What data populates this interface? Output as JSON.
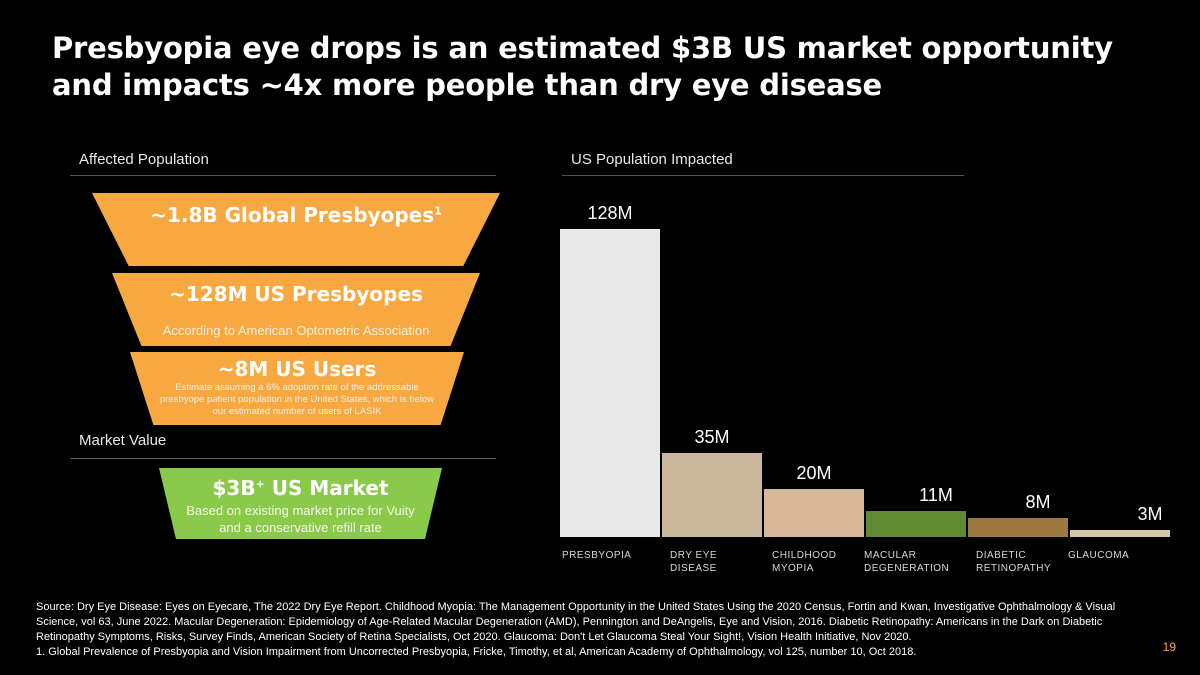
{
  "title": "Presbyopia eye drops is an estimated $3B US market opportunity and impacts ~4x more people than dry eye disease",
  "left": {
    "affected_label": "Affected Population",
    "market_label": "Market Value",
    "funnel": [
      {
        "headline": "~1.8B Global Presbyopes",
        "superscript": "1",
        "sub": ""
      },
      {
        "headline": "~128M US Presbyopes",
        "sub": "According to American Optometric Association"
      },
      {
        "headline": "~8M US Users",
        "sub": "Estimate assuming a 6% adoption rate of the addressable presbyope patient population in the United States, which is below our estimated number of users of LASIK"
      }
    ],
    "market": {
      "headline": "$3B",
      "superscript": "+",
      "headline_suffix": " US Market",
      "sub": "Based on existing market price for Vuity and a conservative refill rate"
    }
  },
  "colors": {
    "orange": "#f7a840",
    "green": "#8bc94a",
    "page_number": "#f7a840"
  },
  "chart_data": {
    "type": "bar",
    "title": "US Population Impacted",
    "categories": [
      "PRESBYOPIA",
      "DRY EYE DISEASE",
      "CHILDHOOD MYOPIA",
      "MACULAR DEGENERATION",
      "DIABETIC RETINOPATHY",
      "GLAUCOMA"
    ],
    "category_lines": [
      [
        "PRESBYOPIA"
      ],
      [
        "DRY EYE",
        "DISEASE"
      ],
      [
        "CHILDHOOD",
        "MYOPIA"
      ],
      [
        "MACULAR",
        "DEGENERATION"
      ],
      [
        "DIABETIC",
        "RETINOPATHY"
      ],
      [
        "GLAUCOMA"
      ]
    ],
    "values": [
      128,
      35,
      20,
      11,
      8,
      3
    ],
    "value_labels": [
      "128M",
      "35M",
      "20M",
      "11M",
      "8M",
      "3M"
    ],
    "units": "M",
    "ylim": [
      0,
      128
    ],
    "bar_fills": [
      "#e9e9e9",
      "#cbb89c",
      "#d6b79a",
      "#5f8a32",
      "#9c7a3e",
      "#d2c7a8"
    ]
  },
  "source": "Source: Dry Eye Disease: Eyes on Eyecare, The 2022 Dry Eye Report. Childhood Myopia: The Management Opportunity in the United States Using the 2020 Census, Fortin and Kwan, Investigative Ophthalmology & Visual Science, vol 63, June 2022. Macular Degeneration: Epidemiology of Age-Related Macular Degeneration (AMD), Pennington and DeAngelis, Eye and Vision, 2016. Diabetic Retinopathy: Americans in the Dark on Diabetic Retinopathy Symptoms, Risks, Survey Finds, American Society of Retina Specialists, Oct 2020. Glaucoma: Don't Let Glaucoma Steal Your Sight!, Vision Health Initiative, Nov 2020.",
  "footnote": "1. Global Prevalence of Presbyopia and Vision Impairment from Uncorrected Presbyopia, Fricke, Timothy, et al, American Academy of Ophthalmology, vol 125, number 10, Oct 2018.",
  "page_number": "19"
}
